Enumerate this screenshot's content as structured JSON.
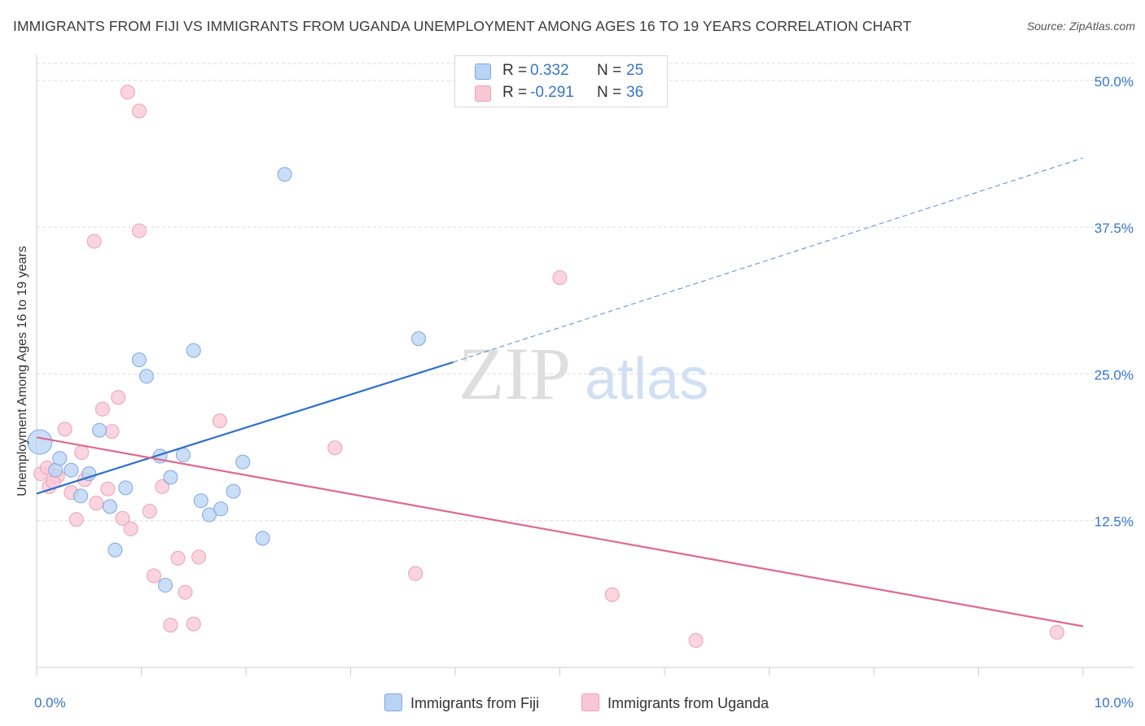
{
  "header": {
    "title": "IMMIGRANTS FROM FIJI VS IMMIGRANTS FROM UGANDA UNEMPLOYMENT AMONG AGES 16 TO 19 YEARS CORRELATION CHART",
    "source": "Source: ZipAtlas.com"
  },
  "legend": {
    "fiji": {
      "r_label": "R =",
      "r_value": "0.332",
      "n_label": "N =",
      "n_value": "25"
    },
    "uganda": {
      "r_label": "R =",
      "r_value": "-0.291",
      "n_label": "N =",
      "n_value": "36"
    }
  },
  "watermark": {
    "zip": "ZIP",
    "atlas": "atlas"
  },
  "colors": {
    "fiji_fill": "#b9d3f5",
    "fiji_stroke": "#7ea8de",
    "fiji_line": "#2d6fcc",
    "uganda_fill": "#f8c7d6",
    "uganda_stroke": "#eaa0b8",
    "uganda_line": "#e06890",
    "tick_text": "#3776c6",
    "grid": "#dddddd"
  },
  "chart_data": {
    "type": "scatter",
    "title": "IMMIGRANTS FROM FIJI VS IMMIGRANTS FROM UGANDA UNEMPLOYMENT AMONG AGES 16 TO 19 YEARS CORRELATION CHART",
    "xlabel": "",
    "ylabel": "Unemployment Among Ages 16 to 19 years",
    "xlim": [
      0,
      10
    ],
    "ylim": [
      0,
      52
    ],
    "x_tick_labels": [
      "0.0%",
      "10.0%"
    ],
    "y_ticks": [
      12.5,
      25.0,
      37.5,
      50.0
    ],
    "y_tick_labels": [
      "12.5%",
      "25.0%",
      "37.5%",
      "50.0%"
    ],
    "series": [
      {
        "name": "Immigrants from Fiji",
        "points": [
          [
            0.03,
            19.2
          ],
          [
            0.18,
            16.8
          ],
          [
            0.22,
            17.8
          ],
          [
            0.33,
            16.8
          ],
          [
            0.42,
            14.6
          ],
          [
            0.5,
            16.5
          ],
          [
            0.6,
            20.2
          ],
          [
            0.7,
            13.7
          ],
          [
            0.75,
            10.0
          ],
          [
            0.85,
            15.3
          ],
          [
            0.98,
            26.2
          ],
          [
            1.05,
            24.8
          ],
          [
            1.18,
            18.0
          ],
          [
            1.23,
            7.0
          ],
          [
            1.28,
            16.2
          ],
          [
            1.4,
            18.1
          ],
          [
            1.5,
            27.0
          ],
          [
            1.57,
            14.2
          ],
          [
            1.65,
            13.0
          ],
          [
            1.76,
            13.5
          ],
          [
            1.88,
            15.0
          ],
          [
            1.97,
            17.5
          ],
          [
            2.16,
            11.0
          ],
          [
            2.37,
            42.0
          ],
          [
            3.65,
            28.0
          ]
        ],
        "trend": {
          "x0": 0.0,
          "y0": 14.8,
          "x1": 3.98,
          "y1": 26.0,
          "dashed_to_x": 10.0,
          "dashed_to_y": 43.4
        }
      },
      {
        "name": "Immigrants from Uganda",
        "points": [
          [
            0.04,
            16.5
          ],
          [
            0.12,
            15.4
          ],
          [
            0.2,
            16.3
          ],
          [
            0.27,
            20.3
          ],
          [
            0.33,
            14.9
          ],
          [
            0.38,
            12.6
          ],
          [
            0.43,
            18.3
          ],
          [
            0.46,
            16.0
          ],
          [
            0.55,
            36.3
          ],
          [
            0.57,
            14.0
          ],
          [
            0.63,
            22.0
          ],
          [
            0.68,
            15.2
          ],
          [
            0.72,
            20.1
          ],
          [
            0.78,
            23.0
          ],
          [
            0.82,
            12.7
          ],
          [
            0.87,
            49.0
          ],
          [
            0.9,
            11.8
          ],
          [
            0.98,
            37.2
          ],
          [
            0.98,
            47.4
          ],
          [
            1.08,
            13.3
          ],
          [
            1.12,
            7.8
          ],
          [
            1.2,
            15.4
          ],
          [
            1.28,
            3.6
          ],
          [
            1.35,
            9.3
          ],
          [
            1.42,
            6.4
          ],
          [
            1.5,
            3.7
          ],
          [
            1.55,
            9.4
          ],
          [
            1.75,
            21.0
          ],
          [
            2.85,
            18.7
          ],
          [
            3.62,
            8.0
          ],
          [
            5.0,
            33.2
          ],
          [
            5.5,
            6.2
          ],
          [
            6.3,
            2.3
          ],
          [
            9.75,
            3.0
          ],
          [
            0.1,
            17.0
          ],
          [
            0.16,
            15.8
          ]
        ],
        "trend": {
          "x0": 0.0,
          "y0": 19.6,
          "x1": 10.0,
          "y1": 3.5
        }
      }
    ]
  },
  "axis": {
    "y_title": "Unemployment Among Ages 16 to 19 years",
    "x_min_label": "0.0%",
    "x_max_label": "10.0%"
  },
  "bottom_legend": {
    "fiji": "Immigrants from Fiji",
    "uganda": "Immigrants from Uganda"
  }
}
